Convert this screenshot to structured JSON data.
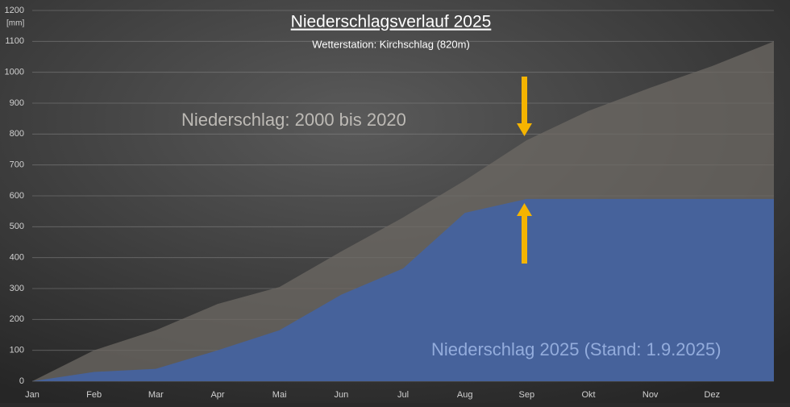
{
  "chart_data": {
    "type": "area",
    "title": "Niederschlagsverlauf 2025",
    "subtitle": "Wetterstation: Kirchschlag (820m)",
    "y_label": "[mm]",
    "categories": [
      "Jan",
      "Feb",
      "Mar",
      "Apr",
      "Mai",
      "Jun",
      "Jul",
      "Aug",
      "Sep",
      "Okt",
      "Nov",
      "Dez",
      null
    ],
    "series": [
      {
        "name": "Niederschlag: 2000 bis 2020",
        "color": "#6e6a64",
        "values": [
          0,
          100,
          165,
          250,
          305,
          420,
          530,
          650,
          780,
          875,
          950,
          1020,
          1100
        ]
      },
      {
        "name": "Niederschlag 2025 (Stand: 1.9.2025)",
        "color": "#46629b",
        "values": [
          0,
          30,
          40,
          100,
          165,
          280,
          365,
          545,
          590,
          590,
          590,
          590,
          590
        ]
      }
    ],
    "ylim": [
      0,
      1200
    ],
    "yticks": [
      0,
      100,
      200,
      300,
      400,
      500,
      600,
      700,
      800,
      900,
      1000,
      1100,
      1200
    ],
    "grid": true
  }
}
